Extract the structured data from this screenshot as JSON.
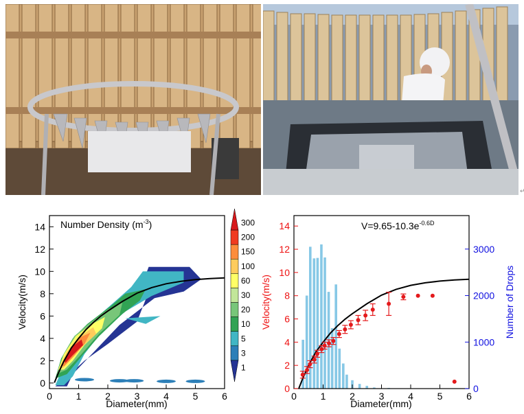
{
  "colors": {
    "fit_curve": "#000000",
    "points": "#e41a1c",
    "bars": "#87c8e6",
    "right_axis": "#1010e0",
    "left_axis_right_panel": "#ee1111"
  },
  "photos": [
    {
      "icon": "disdrometer-ring-photo"
    },
    {
      "icon": "disdrometer-worker-photo"
    }
  ],
  "chart_data": [
    {
      "type": "heatmap",
      "title": "Number Density (m⁻³)",
      "title_main": "Number Density (m",
      "title_sup": "-3",
      "title_end": ")",
      "xlabel": "Diameter(mm)",
      "ylabel": "Velocity(m/s)",
      "xlim": [
        0,
        6
      ],
      "ylim": [
        -0.5,
        15
      ],
      "xticks": [
        "0",
        "1",
        "2",
        "3",
        "4",
        "5",
        "6"
      ],
      "yticks": [
        "0",
        "2",
        "4",
        "6",
        "8",
        "10",
        "12",
        "14"
      ],
      "colorbar": {
        "labels": [
          "300",
          "200",
          "150",
          "100",
          "60",
          "30",
          "20",
          "10",
          "5",
          "3",
          "1"
        ],
        "colors": [
          "#d7191c",
          "#f03b20",
          "#fd8d3c",
          "#fecc5c",
          "#ffff66",
          "#c2e699",
          "#78c679",
          "#31a354",
          "#41b6c4",
          "#2c7fb8",
          "#253494"
        ]
      },
      "fit": {
        "formula": "V=9.65-10.3e^(-0.6D)",
        "x": [
          0.17,
          0.3,
          0.5,
          0.75,
          1,
          1.25,
          1.5,
          1.75,
          2,
          2.5,
          3,
          3.5,
          4,
          4.5,
          5,
          5.5,
          6
        ],
        "y": [
          0.03,
          0.87,
          1.99,
          3.15,
          4.0,
          4.78,
          5.42,
          5.98,
          6.45,
          7.31,
          8.05,
          8.55,
          8.89,
          9.11,
          9.26,
          9.36,
          9.42
        ]
      }
    },
    {
      "type": "bar",
      "title": "V=9.65-10.3e",
      "title_sup": "-0.6D",
      "xlabel": "Diameter(mm)",
      "ylabel": "Velocity(m/s)",
      "y2label": "Number of Drops",
      "xlim": [
        0,
        6
      ],
      "ylim": [
        0,
        14.9
      ],
      "y2lim": [
        0,
        3720
      ],
      "xticks": [
        "0",
        "1",
        "2",
        "3",
        "4",
        "5",
        "6"
      ],
      "yticks": [
        "0",
        "2",
        "4",
        "6",
        "8",
        "10",
        "12",
        "14"
      ],
      "y2ticks": [
        "0",
        "1000",
        "2000",
        "3000"
      ],
      "bars": {
        "x": [
          0.31,
          0.44,
          0.56,
          0.69,
          0.81,
          0.94,
          1.06,
          1.19,
          1.31,
          1.44,
          1.56,
          1.69,
          1.81,
          2.0,
          2.25,
          2.5,
          2.75,
          3.25
        ],
        "values": [
          1050,
          2000,
          3050,
          2800,
          2810,
          3100,
          2820,
          2080,
          1300,
          2240,
          860,
          540,
          300,
          180,
          100,
          60,
          25,
          15
        ]
      },
      "points": {
        "x": [
          0.3,
          0.45,
          0.55,
          0.7,
          0.8,
          0.95,
          1.05,
          1.2,
          1.35,
          1.55,
          1.75,
          1.95,
          2.2,
          2.45,
          2.7,
          3.25,
          3.75,
          4.25,
          4.75,
          5.5
        ],
        "y": [
          1.2,
          1.6,
          2.1,
          2.5,
          3.0,
          3.4,
          3.7,
          3.9,
          4.1,
          4.7,
          5.1,
          5.5,
          5.9,
          6.3,
          6.8,
          7.3,
          7.9,
          8.0,
          8.0,
          0.6
        ],
        "err": [
          0.3,
          0.3,
          0.3,
          0.3,
          0.3,
          0.3,
          0.3,
          0.3,
          0.3,
          0.3,
          0.35,
          0.35,
          0.4,
          0.45,
          0.5,
          1.0,
          0.25,
          0,
          0,
          0
        ]
      },
      "fit": {
        "x": [
          0.17,
          0.3,
          0.5,
          0.75,
          1,
          1.25,
          1.5,
          1.75,
          2,
          2.5,
          3,
          3.5,
          4,
          4.5,
          5,
          5.5,
          6
        ],
        "y": [
          0.03,
          0.87,
          1.99,
          3.15,
          4.0,
          4.78,
          5.42,
          5.98,
          6.45,
          7.31,
          8.05,
          8.55,
          8.89,
          9.11,
          9.26,
          9.36,
          9.42
        ]
      }
    }
  ]
}
